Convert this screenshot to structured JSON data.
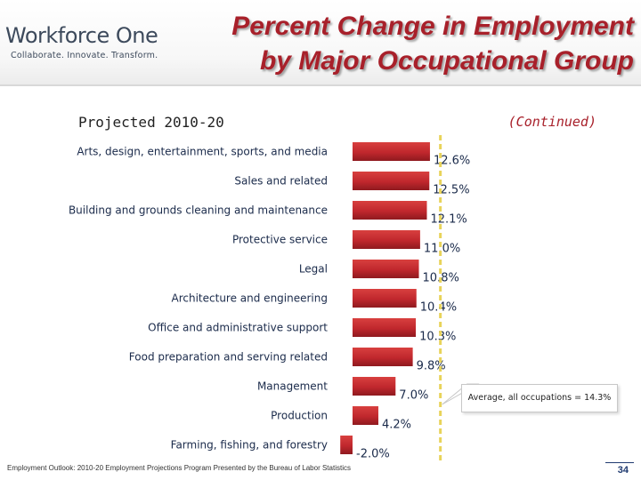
{
  "header": {
    "logo": {
      "brand": "Workforce One",
      "tagline": "Collaborate.  Innovate.  Transform."
    },
    "title_line1": "Percent Change in Employment",
    "title_line2": "by Major Occupational Group"
  },
  "subtitle": "Projected 2010-20",
  "continued_label": "(Continued)",
  "chart_data": {
    "type": "bar",
    "orientation": "horizontal",
    "categories": [
      "Arts, design, entertainment, sports, and media",
      "Sales and related",
      "Building and grounds cleaning and maintenance",
      "Protective service",
      "Legal",
      "Architecture and engineering",
      "Office and administrative support",
      "Food preparation and serving related",
      "Management",
      "Production",
      "Farming, fishing, and forestry"
    ],
    "values": [
      12.6,
      12.5,
      12.1,
      11.0,
      10.8,
      10.4,
      10.3,
      9.8,
      7.0,
      4.2,
      -2.0
    ],
    "data_labels": [
      "12.6%",
      "12.5%",
      "12.1%",
      "11.0%",
      "10.8%",
      "10.4%",
      "10.3%",
      "9.8%",
      "7.0%",
      "4.2%",
      "-2.0%"
    ],
    "reference_line": {
      "value": 14.3,
      "label": "Average, all occupations = 14.3%",
      "style": "dashed",
      "color": "#e8d35a"
    },
    "bar_color": "#c0272d",
    "xlim": [
      -2.0,
      14.3
    ],
    "grid": false
  },
  "footer": "Employment Outlook: 2010-20 Employment Projections Program Presented by the Bureau of Labor Statistics",
  "page_number": "34",
  "colors": {
    "title": "#a8202a",
    "bar": "#c0272d",
    "reference": "#e8d35a",
    "page_number": "#1f3a70"
  }
}
